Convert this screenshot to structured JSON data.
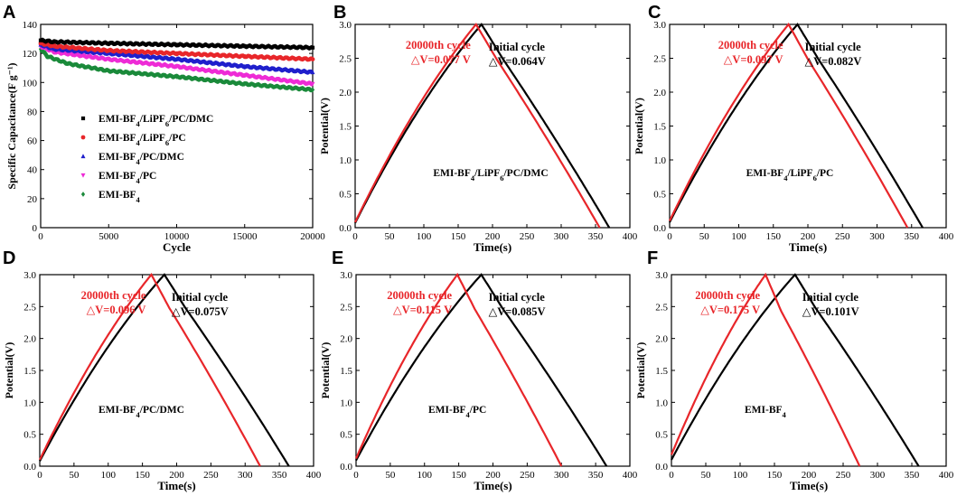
{
  "figure": {
    "panels": [
      "A",
      "B",
      "C",
      "D",
      "E",
      "F"
    ]
  },
  "chart_data": [
    {
      "id": "A",
      "type": "scatter",
      "xlabel": "Cycle",
      "ylabel": "Specific Capacitance(F g⁻¹)",
      "xlim": [
        0,
        20000
      ],
      "ylim": [
        0,
        140
      ],
      "xticks": [
        0,
        5000,
        10000,
        15000,
        20000
      ],
      "yticks": [
        0,
        20,
        40,
        60,
        80,
        100,
        120,
        140
      ],
      "legend_position": "center-left",
      "series": [
        {
          "name": "EMI-BF4/LiPF6/PC/DMC",
          "legend_main": "EMI-BF",
          "legend_rest": "/LiPF",
          "legend_rest2": "/PC/DMC",
          "color": "#000000",
          "marker": "square",
          "x": [
            0,
            1000,
            5000,
            10000,
            15000,
            20000
          ],
          "y": [
            129,
            128,
            127,
            126,
            125,
            124
          ]
        },
        {
          "name": "EMI-BF4/LiPF6/PC",
          "legend_main": "EMI-BF",
          "legend_rest": "/LiPF",
          "legend_rest2": "/PC",
          "color": "#e8262a",
          "marker": "circle",
          "x": [
            0,
            1000,
            5000,
            10000,
            15000,
            20000
          ],
          "y": [
            127,
            125,
            122,
            120,
            118,
            116
          ]
        },
        {
          "name": "EMI-BF4/PC/DMC",
          "legend_main": "EMI-BF",
          "legend_rest": "/PC/DMC",
          "legend_rest2": "",
          "color": "#1f1fcc",
          "marker": "triangle-up",
          "x": [
            0,
            1000,
            5000,
            10000,
            15000,
            20000
          ],
          "y": [
            126,
            123,
            120,
            116,
            111,
            107
          ]
        },
        {
          "name": "EMI-BF4/PC",
          "legend_main": "EMI-BF",
          "legend_rest": "/PC",
          "legend_rest2": "",
          "color": "#ee2bd6",
          "marker": "triangle-down",
          "x": [
            0,
            1000,
            5000,
            10000,
            15000,
            20000
          ],
          "y": [
            125,
            121,
            116,
            111,
            105,
            99
          ]
        },
        {
          "name": "EMI-BF4",
          "legend_main": "EMI-BF",
          "legend_rest": "",
          "legend_rest2": "",
          "color": "#1a8a3a",
          "marker": "diamond",
          "x": [
            0,
            500,
            2000,
            5000,
            10000,
            15000,
            20000
          ],
          "y": [
            123,
            118,
            113,
            108,
            104,
            99,
            95
          ]
        }
      ]
    },
    {
      "id": "B",
      "type": "line",
      "xlabel": "Time(s)",
      "ylabel": "Potential(V)",
      "xlim": [
        0,
        400
      ],
      "ylim": [
        0,
        3.0
      ],
      "xticks": [
        0,
        50,
        100,
        150,
        200,
        250,
        300,
        350,
        400
      ],
      "yticks": [
        0.0,
        0.5,
        1.0,
        1.5,
        2.0,
        2.5,
        3.0
      ],
      "electrolyte_main": "EMI-BF",
      "electrolyte_rest": "/LiPF",
      "electrolyte_rest2": "/PC/DMC",
      "initial": {
        "label": "Initial cycle",
        "dv": "△V=0.064V",
        "color": "#000000",
        "v0": 0.07,
        "t_peak": 184,
        "t_end": 370
      },
      "final": {
        "label": "20000th cycle",
        "dv": "△V=0.077 V",
        "color": "#e8262a",
        "v0": 0.08,
        "t_peak": 176,
        "t_end": 356
      }
    },
    {
      "id": "C",
      "type": "line",
      "xlabel": "Time(s)",
      "ylabel": "Potential(V)",
      "xlim": [
        0,
        400
      ],
      "ylim": [
        0,
        3.0
      ],
      "xticks": [
        0,
        50,
        100,
        150,
        200,
        250,
        300,
        350,
        400
      ],
      "yticks": [
        0.0,
        0.5,
        1.0,
        1.5,
        2.0,
        2.5,
        3.0
      ],
      "electrolyte_main": "EMI-BF",
      "electrolyte_rest": "/LiPF",
      "electrolyte_rest2": "/PC",
      "initial": {
        "label": "Initial cycle",
        "dv": "△V=0.082V",
        "color": "#000000",
        "v0": 0.08,
        "t_peak": 185,
        "t_end": 366
      },
      "final": {
        "label": "20000th cycle",
        "dv": "△V=0.097 V",
        "color": "#e8262a",
        "v0": 0.1,
        "t_peak": 172,
        "t_end": 344
      }
    },
    {
      "id": "D",
      "type": "line",
      "xlabel": "Time(s)",
      "ylabel": "Potential(V)",
      "xlim": [
        0,
        400
      ],
      "ylim": [
        0,
        3.0
      ],
      "xticks": [
        0,
        50,
        100,
        150,
        200,
        250,
        300,
        350,
        400
      ],
      "yticks": [
        0.0,
        0.5,
        1.0,
        1.5,
        2.0,
        2.5,
        3.0
      ],
      "electrolyte_main": "EMI-BF",
      "electrolyte_rest": "/PC/DMC",
      "electrolyte_rest2": "",
      "initial": {
        "label": "Initial cycle",
        "dv": "△V=0.075V",
        "color": "#000000",
        "v0": 0.08,
        "t_peak": 182,
        "t_end": 364
      },
      "final": {
        "label": "20000th cycle",
        "dv": "△V=0.096 V",
        "color": "#e8262a",
        "v0": 0.1,
        "t_peak": 163,
        "t_end": 322
      }
    },
    {
      "id": "E",
      "type": "line",
      "xlabel": "Time(s)",
      "ylabel": "Potential(V)",
      "xlim": [
        0,
        400
      ],
      "ylim": [
        0,
        3.0
      ],
      "xticks": [
        0,
        50,
        100,
        150,
        200,
        250,
        300,
        350,
        400
      ],
      "yticks": [
        0.0,
        0.5,
        1.0,
        1.5,
        2.0,
        2.5,
        3.0
      ],
      "electrolyte_main": "EMI-BF",
      "electrolyte_rest": "/PC",
      "electrolyte_rest2": "",
      "initial": {
        "label": "Initial cycle",
        "dv": "△V=0.085V",
        "color": "#000000",
        "v0": 0.09,
        "t_peak": 183,
        "t_end": 366
      },
      "final": {
        "label": "20000th cycle",
        "dv": "△V=0.115 V",
        "color": "#e8262a",
        "v0": 0.12,
        "t_peak": 148,
        "t_end": 300
      }
    },
    {
      "id": "F",
      "type": "line",
      "xlabel": "Time(s)",
      "ylabel": "Potential(V)",
      "xlim": [
        0,
        400
      ],
      "ylim": [
        0,
        3.0
      ],
      "xticks": [
        0,
        50,
        100,
        150,
        200,
        250,
        300,
        350,
        400
      ],
      "yticks": [
        0.0,
        0.5,
        1.0,
        1.5,
        2.0,
        2.5,
        3.0
      ],
      "electrolyte_main": "EMI-BF",
      "electrolyte_rest": "",
      "electrolyte_rest2": "",
      "initial": {
        "label": "Initial cycle",
        "dv": "△V=0.101V",
        "color": "#000000",
        "v0": 0.1,
        "t_peak": 180,
        "t_end": 360
      },
      "final": {
        "label": "20000th cycle",
        "dv": "△V=0.175 V",
        "color": "#e8262a",
        "v0": 0.18,
        "t_peak": 137,
        "t_end": 274
      }
    }
  ]
}
